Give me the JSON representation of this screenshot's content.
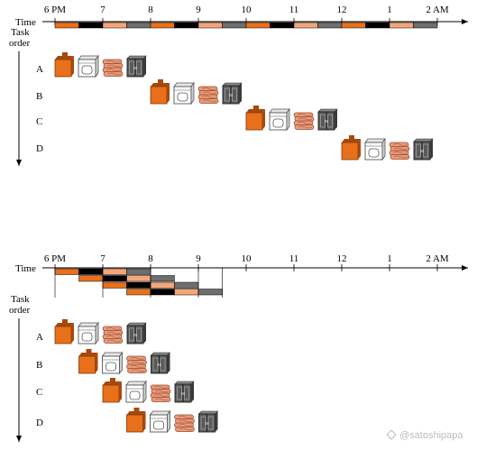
{
  "colors": {
    "wash": "#e8701a",
    "wash_dark": "#a8480c",
    "dry_fill": "#ffffff",
    "dry_stroke": "#555555",
    "fold": "#ef9a78",
    "fold_dark": "#8a4a33",
    "closet": "#5a5a5a",
    "closet_dark": "#222222",
    "bar_black": "#000000",
    "bar_orange": "#e8701a",
    "bar_peach": "#f2a679",
    "bar_gray": "#6e6e6e"
  },
  "time_labels": [
    "6 PM",
    "7",
    "8",
    "9",
    "10",
    "11",
    "12",
    "1",
    "2 AM"
  ],
  "axis": {
    "time_label": "Time",
    "task_order_line1": "Task",
    "task_order_line2": "order"
  },
  "tasks": [
    "A",
    "B",
    "C",
    "D"
  ],
  "stages": [
    "wash",
    "dry",
    "fold",
    "put-away"
  ],
  "sequential": {
    "start_hours": [
      0,
      2,
      4,
      6
    ],
    "stage_duration_hours": 0.5
  },
  "pipelined": {
    "start_hours": [
      0,
      0.5,
      1,
      1.5
    ],
    "stage_duration_hours": 0.5
  },
  "watermark": "@satoshipapa",
  "watermark_icon": "diamond-logo-icon"
}
